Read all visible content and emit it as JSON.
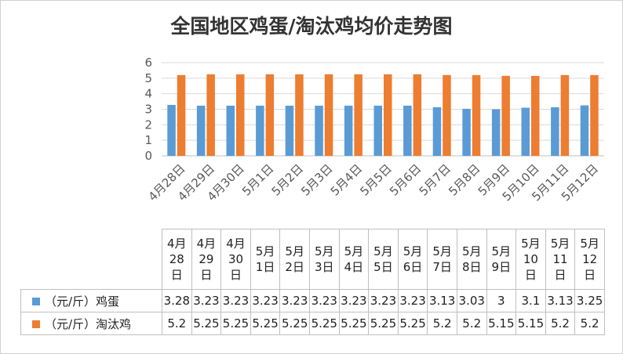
{
  "chart_data": {
    "type": "bar",
    "title": "全国地区鸡蛋/淘汰鸡均价走势图",
    "categories": [
      "4月28日",
      "4月29日",
      "4月30日",
      "5月1日",
      "5月2日",
      "5月3日",
      "5月4日",
      "5月5日",
      "5月6日",
      "5月7日",
      "5月8日",
      "5月9日",
      "5月10日",
      "5月11日",
      "5月12日"
    ],
    "series": [
      {
        "name": "（元/斤）鸡蛋",
        "color": "#5b9bd5",
        "values": [
          3.28,
          3.23,
          3.23,
          3.23,
          3.23,
          3.23,
          3.23,
          3.23,
          3.23,
          3.13,
          3.03,
          3,
          3.1,
          3.13,
          3.25
        ],
        "labels": [
          "3.28",
          "3.23",
          "3.23",
          "3.23",
          "3.23",
          "3.23",
          "3.23",
          "3.23",
          "3.23",
          "3.13",
          "3.03",
          "3",
          "3.1",
          "3.13",
          "3.25"
        ]
      },
      {
        "name": "（元/斤）淘汰鸡",
        "color": "#ed7d31",
        "values": [
          5.2,
          5.25,
          5.25,
          5.25,
          5.25,
          5.25,
          5.25,
          5.25,
          5.25,
          5.2,
          5.2,
          5.15,
          5.15,
          5.2,
          5.2
        ],
        "labels": [
          "5.2",
          "5.25",
          "5.25",
          "5.25",
          "5.25",
          "5.25",
          "5.25",
          "5.25",
          "5.25",
          "5.2",
          "5.2",
          "5.15",
          "5.15",
          "5.2",
          "5.2"
        ]
      }
    ],
    "ylim": [
      0,
      6
    ],
    "yticks": [
      "0",
      "1",
      "2",
      "3",
      "4",
      "5",
      "6"
    ],
    "grid": true,
    "legend": "data-table"
  }
}
